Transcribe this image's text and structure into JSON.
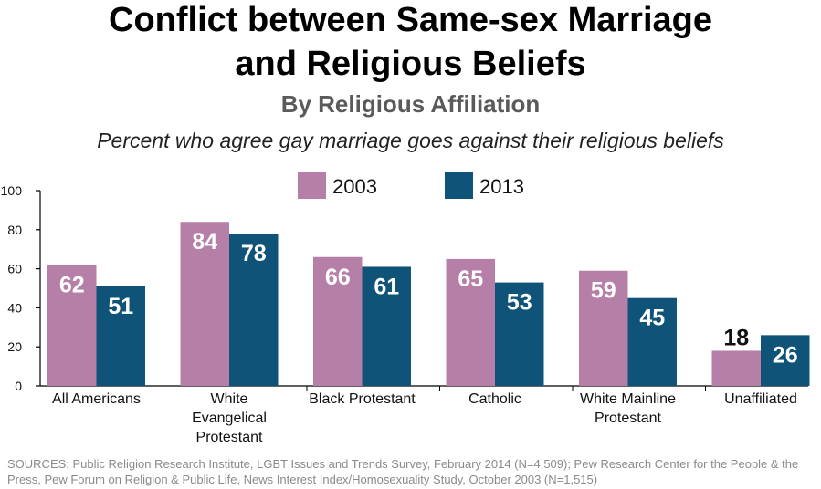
{
  "header": {
    "title_line1": "Conflict between Same-sex Marriage",
    "title_line2": "and Religious Beliefs",
    "subtitle": "By Religious Affiliation",
    "question": "Percent who agree gay marriage goes against their religious beliefs"
  },
  "footer": {
    "sources": "SOURCES: Public Religion Research Institute, LGBT Issues and Trends Survey, February 2014 (N=4,509); Pew Research Center for the People & the Press, Pew Forum on Religion & Public Life, News Interest Index/Homosexuality Study, October 2003 (N=1,515)"
  },
  "chart_data": {
    "type": "bar",
    "categories": [
      [
        "All Americans"
      ],
      [
        "White",
        "Evangelical",
        "Protestant"
      ],
      [
        "Black Protestant"
      ],
      [
        "Catholic"
      ],
      [
        "White Mainline",
        "Protestant"
      ],
      [
        "Unaffiliated"
      ]
    ],
    "series": [
      {
        "name": "2003",
        "color": "#b57fa7",
        "values": [
          62,
          84,
          66,
          65,
          59,
          18
        ]
      },
      {
        "name": "2013",
        "color": "#0f5478",
        "values": [
          51,
          78,
          61,
          53,
          45,
          26
        ]
      }
    ],
    "ylim": [
      0,
      100
    ],
    "yticks": [
      0,
      20,
      40,
      60,
      80,
      100
    ],
    "legend_position": "top-center",
    "grid": false
  }
}
